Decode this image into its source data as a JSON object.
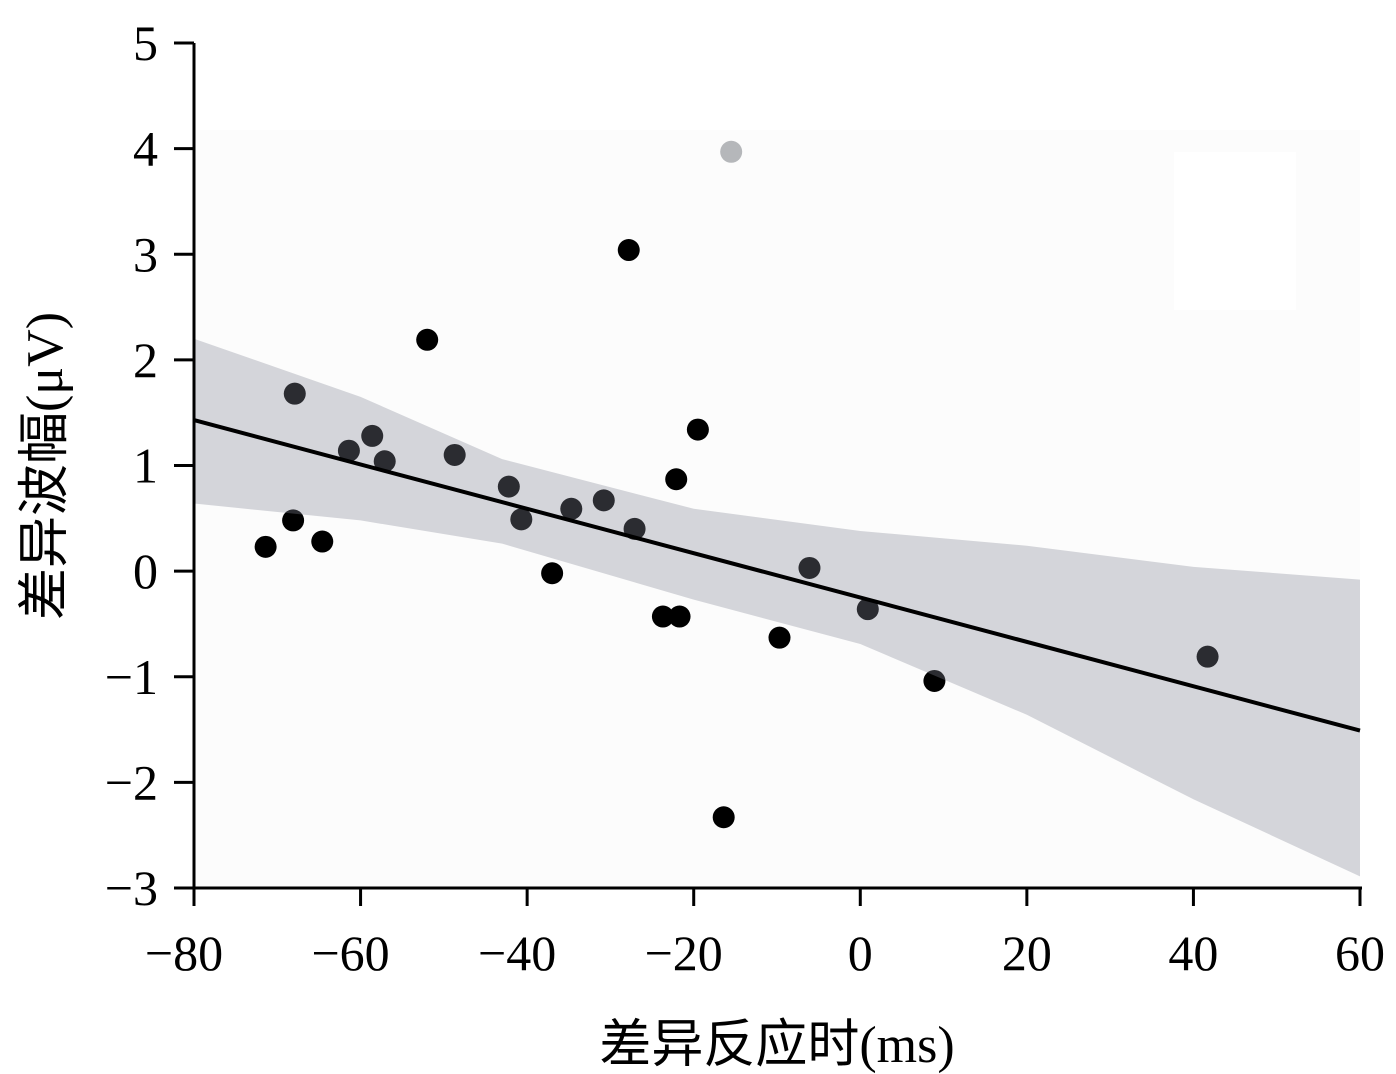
{
  "chart_data": {
    "type": "scatter",
    "title": "",
    "xlabel": "差异反应时(ms)",
    "ylabel": "差异波幅(μV)",
    "xlim": [
      -80,
      60
    ],
    "ylim": [
      -3,
      5
    ],
    "xticks": [
      -80,
      -60,
      -40,
      -20,
      0,
      20,
      40,
      60
    ],
    "yticks": [
      -3,
      -2,
      -1,
      0,
      1,
      2,
      3,
      4,
      5
    ],
    "xtick_labels": [
      "−80",
      "−60",
      "−40",
      "−20",
      "0",
      "20",
      "40",
      "60"
    ],
    "ytick_labels": [
      "−3",
      "−2",
      "−1",
      "0",
      "1",
      "2",
      "3",
      "4",
      "5"
    ],
    "grid": false,
    "points": [
      {
        "x": -71.4,
        "y": 0.23
      },
      {
        "x": -67.9,
        "y": 1.68
      },
      {
        "x": -68.1,
        "y": 0.48
      },
      {
        "x": -64.6,
        "y": 0.28
      },
      {
        "x": -61.4,
        "y": 1.14
      },
      {
        "x": -58.6,
        "y": 1.28
      },
      {
        "x": -57.1,
        "y": 1.04
      },
      {
        "x": -52.0,
        "y": 2.19
      },
      {
        "x": -48.7,
        "y": 1.1
      },
      {
        "x": -42.2,
        "y": 0.8
      },
      {
        "x": -40.7,
        "y": 0.49
      },
      {
        "x": -37.0,
        "y": -0.02
      },
      {
        "x": -34.7,
        "y": 0.59
      },
      {
        "x": -30.8,
        "y": 0.67
      },
      {
        "x": -27.8,
        "y": 3.04
      },
      {
        "x": -27.1,
        "y": 0.4
      },
      {
        "x": -23.7,
        "y": -0.43
      },
      {
        "x": -21.7,
        "y": -0.43
      },
      {
        "x": -22.1,
        "y": 0.87
      },
      {
        "x": -19.5,
        "y": 1.34
      },
      {
        "x": -16.4,
        "y": -2.33
      },
      {
        "x": -9.7,
        "y": -0.63
      },
      {
        "x": -6.1,
        "y": 0.03
      },
      {
        "x": 0.9,
        "y": -0.36
      },
      {
        "x": 8.9,
        "y": -1.04
      },
      {
        "x": 41.7,
        "y": -0.81
      }
    ],
    "outlier_points": [
      {
        "x": -15.5,
        "y": 3.97
      }
    ],
    "regression_line": {
      "x": [
        -80,
        60
      ],
      "y": [
        1.43,
        -1.51
      ]
    },
    "confidence_band": {
      "x": [
        -80,
        -60,
        -43,
        -20,
        0,
        20,
        40,
        60
      ],
      "upper": [
        2.2,
        1.65,
        1.06,
        0.59,
        0.38,
        0.24,
        0.04,
        -0.08
      ],
      "lower": [
        0.64,
        0.48,
        0.26,
        -0.27,
        -0.69,
        -1.36,
        -2.16,
        -2.89
      ]
    },
    "colors": {
      "point": "#000000",
      "outlier": "#b5b7ba",
      "line": "#000000",
      "band": "rgba(130,133,148,0.33)"
    }
  }
}
